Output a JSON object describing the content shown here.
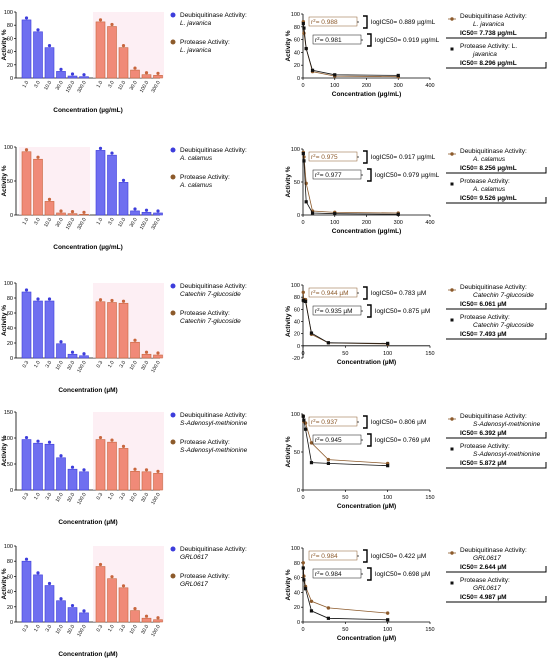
{
  "figure": {
    "colors": {
      "blue": "#3d3ddb",
      "blue_fill": "#6f6ff0",
      "red": "#c8663e",
      "red_fill": "#f08a78",
      "brown": "#8c5a2b",
      "black": "#111111"
    }
  },
  "chart_data": [
    {
      "type": "bar",
      "xlabel": "Concentration (µg/mL)",
      "ylabel": "Activity %",
      "ylim": [
        0,
        100
      ],
      "yticks": [
        "0",
        "20",
        "40",
        "60",
        "80",
        "100"
      ],
      "categories": [
        "1.0",
        "3.0",
        "10.0",
        "30.0",
        "100.0",
        "300.0"
      ],
      "series": [
        {
          "name": "Deubiquitinase Activity: L. javanica",
          "values": [
            88,
            70,
            46,
            10,
            3,
            2
          ]
        },
        {
          "name": "Protease Activity: L. javanica",
          "values": [
            85,
            78,
            46,
            12,
            5,
            4
          ]
        }
      ],
      "legend": [
        {
          "line1": "Deubiquitinase Activity:",
          "line2": "L. javanica"
        },
        {
          "line1": "Protease Activity:",
          "line2": "L. javanica"
        }
      ]
    },
    {
      "type": "line",
      "xlabel": "Concentration (µg/mL)",
      "ylabel": "Activity %",
      "xlim": [
        0,
        400
      ],
      "ylim": [
        0,
        100
      ],
      "xticks": [
        "0",
        "100",
        "200",
        "300",
        "400"
      ],
      "yticks": [
        "0",
        "20",
        "40",
        "60",
        "80",
        "100"
      ],
      "series": [
        {
          "name": "Deubiquitinase Activity: L. javanica",
          "x": [
            1,
            3,
            10,
            30,
            100,
            300
          ],
          "y": [
            88,
            70,
            46,
            10,
            3,
            2
          ]
        },
        {
          "name": "Protease Activity: L. javanica",
          "x": [
            1,
            3,
            10,
            30,
            100,
            300
          ],
          "y": [
            85,
            78,
            46,
            12,
            5,
            4
          ]
        }
      ],
      "annotations": [
        {
          "r2": "0.988",
          "text": "logIC50= 0.889 µg/mL"
        },
        {
          "r2": "0.981",
          "text": "logIC50= 0.919 µg/mL"
        }
      ],
      "legend": [
        {
          "line1": "Deubiquitinase Activity:",
          "line2": "L. javanica",
          "ic50": "IC50= 7.738 µg/mL"
        },
        {
          "line1": "Protease Activity: L.",
          "line2": "javanica",
          "ic50": "IC50= 8.296 µg/mL"
        }
      ]
    },
    {
      "type": "bar",
      "xlabel": "Concentration (µg/mL)",
      "ylabel": "Activity %",
      "ylim": [
        0,
        100
      ],
      "yticks": [
        "0",
        "50",
        "100"
      ],
      "categories": [
        "1.0",
        "3.0",
        "10.0",
        "30.0",
        "100.0",
        "300.0"
      ],
      "series": [
        {
          "name": "Protease Activity: A. calamus",
          "values": [
            93,
            82,
            20,
            3,
            2,
            1
          ]
        },
        {
          "name": "Deubiquitinase Activity: A. calamus",
          "values": [
            95,
            88,
            48,
            6,
            4,
            3
          ]
        }
      ],
      "legend": [
        {
          "line1": "Deubiquitinase Activity:",
          "line2": "A. calamus"
        },
        {
          "line1": "Protease Activity:",
          "line2": "A. calamus"
        }
      ]
    },
    {
      "type": "line",
      "xlabel": "Concentration (µg/mL)",
      "ylabel": "Activity %",
      "xlim": [
        0,
        400
      ],
      "ylim": [
        0,
        100
      ],
      "xticks": [
        "0",
        "100",
        "200",
        "300",
        "400"
      ],
      "yticks": [
        "0",
        "50",
        "100"
      ],
      "series": [
        {
          "name": "Deubiquitinase Activity: A. calamus",
          "x": [
            1,
            3,
            10,
            30,
            100,
            300
          ],
          "y": [
            95,
            88,
            48,
            6,
            4,
            3
          ]
        },
        {
          "name": "Protease Activity: A. calamus",
          "x": [
            1,
            3,
            10,
            30,
            100,
            300
          ],
          "y": [
            93,
            82,
            20,
            3,
            2,
            1
          ]
        }
      ],
      "annotations": [
        {
          "r2": "0.975",
          "text": "logIC50= 0.917 µg/mL"
        },
        {
          "r2": "0.977",
          "text": "logIC50= 0.979 µg/mL"
        }
      ],
      "legend": [
        {
          "line1": "Deubiquitinase Activity:",
          "line2": "A. calamus",
          "ic50": "IC50= 8.256 µg/mL"
        },
        {
          "line1": "Protease Activity:",
          "line2": "A. calamus",
          "ic50": "IC50= 9.526 µg/mL"
        }
      ]
    },
    {
      "type": "bar",
      "xlabel": "Concentration (µM)",
      "ylabel": "Activity %",
      "ylim": [
        0,
        100
      ],
      "yticks": [
        "0",
        "20",
        "40",
        "60",
        "80",
        "100"
      ],
      "categories": [
        "0.3",
        "1.0",
        "3.0",
        "10.0",
        "30.0",
        "100.0"
      ],
      "series": [
        {
          "name": "Deubiquitinase Activity: Catechin 7-glucoside",
          "values": [
            88,
            76,
            76,
            19,
            5,
            3
          ]
        },
        {
          "name": "Protease Activity: Catechin 7-glucoside",
          "values": [
            75,
            74,
            73,
            21,
            5,
            4
          ]
        }
      ],
      "legend": [
        {
          "line1": "Deubiquitinase Activity:",
          "line2": "Catechin 7-glucoside"
        },
        {
          "line1": "Protease Activity:",
          "line2": "Catechin 7-glucoside"
        }
      ]
    },
    {
      "type": "line",
      "xlabel": "Concentration (µM)",
      "ylabel": "Activity %",
      "xlim": [
        0,
        150
      ],
      "ylim": [
        -20,
        100
      ],
      "xticks": [
        "0",
        "50",
        "100",
        "150"
      ],
      "yticks": [
        "-20",
        "0",
        "20",
        "40",
        "60",
        "80",
        "100"
      ],
      "series": [
        {
          "name": "Deubiquitinase Activity: Catechin 7-glucoside",
          "x": [
            0.3,
            1,
            3,
            10,
            30,
            100
          ],
          "y": [
            88,
            76,
            76,
            19,
            5,
            3
          ]
        },
        {
          "name": "Protease Activity: Catechin 7-glucoside",
          "x": [
            0.3,
            1,
            3,
            10,
            30,
            100
          ],
          "y": [
            75,
            74,
            73,
            21,
            5,
            4
          ]
        }
      ],
      "annotations": [
        {
          "r2": "0.944 µM",
          "text": "logIC50= 0.783 µM"
        },
        {
          "r2": "0.935 µM",
          "text": "logIC50= 0.875 µM"
        }
      ],
      "legend": [
        {
          "line1": "Deubiquitinase Activity:",
          "line2": "Catechin 7-glucoside",
          "ic50": "IC50= 6.061 µM"
        },
        {
          "line1": "Protease Activity:",
          "line2": "Catechin 7-glucoside",
          "ic50": "IC50= 7.493 µM"
        }
      ]
    },
    {
      "type": "bar",
      "xlabel": "Concentration (µM)",
      "ylabel": "Activity %",
      "ylim": [
        0,
        150
      ],
      "yticks": [
        "0",
        "50",
        "100",
        "150"
      ],
      "categories": [
        "0.3",
        "1.0",
        "3.0",
        "10.0",
        "30.0",
        "100.0"
      ],
      "series": [
        {
          "name": "Deubiquitinase Activity: S-Adenosyl-methionine",
          "values": [
            97,
            90,
            88,
            62,
            40,
            35
          ]
        },
        {
          "name": "Protease Activity: S-Adenosyl-methionine",
          "values": [
            97,
            92,
            80,
            36,
            35,
            32
          ]
        }
      ],
      "legend": [
        {
          "line1": "Deubiquitinase Activity:",
          "line2": "S-Adenosyl-methionine"
        },
        {
          "line1": "Protease Activity:",
          "line2": "S-Adenosyl-methionine"
        }
      ]
    },
    {
      "type": "line",
      "xlabel": "Concentration (µM)",
      "ylabel": "Activity %",
      "xlim": [
        0,
        150
      ],
      "ylim": [
        0,
        100
      ],
      "xticks": [
        "0",
        "50",
        "100",
        "150"
      ],
      "yticks": [
        "0",
        "50",
        "100"
      ],
      "series": [
        {
          "name": "Deubiquitinase Activity: S-Adenosyl-methionine",
          "x": [
            0.3,
            1,
            3,
            10,
            30,
            100
          ],
          "y": [
            97,
            90,
            88,
            62,
            40,
            35
          ]
        },
        {
          "name": "Protease Activity: S-Adenosyl-methionine",
          "x": [
            0.3,
            1,
            3,
            10,
            30,
            100
          ],
          "y": [
            97,
            92,
            80,
            36,
            35,
            32
          ]
        }
      ],
      "annotations": [
        {
          "r2": "0.937",
          "text": "logIC50= 0.806 µM"
        },
        {
          "r2": "0.945",
          "text": "logIC50= 0.769 µM"
        }
      ],
      "legend": [
        {
          "line1": "Deubiquitinase Activity:",
          "line2": "S-Adenosyl-methionine",
          "ic50": "IC50= 6.392 µM"
        },
        {
          "line1": "Protease Activity:",
          "line2": "S-Adenosyl-methionine",
          "ic50": "IC50= 5.872 µM"
        }
      ]
    },
    {
      "type": "bar",
      "xlabel": "Concentration (µM)",
      "ylabel": "Activity %",
      "ylim": [
        0,
        100
      ],
      "yticks": [
        "0",
        "20",
        "40",
        "60",
        "80",
        "100"
      ],
      "categories": [
        "0.3",
        "1.0",
        "3.0",
        "10.0",
        "30.0",
        "100.0"
      ],
      "series": [
        {
          "name": "Deubiquitinase Activity: GRL0617",
          "values": [
            80,
            62,
            48,
            28,
            19,
            12
          ]
        },
        {
          "name": "Protease Activity: GRL0617",
          "values": [
            73,
            57,
            45,
            15,
            5,
            3
          ]
        }
      ],
      "legend": [
        {
          "line1": "Deubiquitinase Activity:",
          "line2": "GRL0617"
        },
        {
          "line1": "Protease Activity:",
          "line2": "GRL0617"
        }
      ]
    },
    {
      "type": "line",
      "xlabel": "Concentration (µM)",
      "ylabel": "Activity %",
      "xlim": [
        0,
        150
      ],
      "ylim": [
        0,
        100
      ],
      "xticks": [
        "0",
        "50",
        "100",
        "150"
      ],
      "yticks": [
        "0",
        "20",
        "40",
        "60",
        "80",
        "100"
      ],
      "series": [
        {
          "name": "Deubiquitinase Activity: GRL0617",
          "x": [
            0.3,
            1,
            3,
            10,
            30,
            100
          ],
          "y": [
            80,
            62,
            48,
            28,
            19,
            12
          ]
        },
        {
          "name": "Protease Activity: GRL0617",
          "x": [
            0.3,
            1,
            3,
            10,
            30,
            100
          ],
          "y": [
            73,
            57,
            45,
            15,
            5,
            3
          ]
        }
      ],
      "annotations": [
        {
          "r2": "0.984",
          "text": "logIC50= 0.422 µM"
        },
        {
          "r2": "0.984",
          "text": "logIC50= 0.698 µM"
        }
      ],
      "legend": [
        {
          "line1": "Deubiquitinase Activity:",
          "line2": "GRL0617",
          "ic50": "IC50= 2.644 µM"
        },
        {
          "line1": "Protease Activity:",
          "line2": "GRL0617",
          "ic50": "IC50= 4.987 µM"
        }
      ]
    }
  ]
}
